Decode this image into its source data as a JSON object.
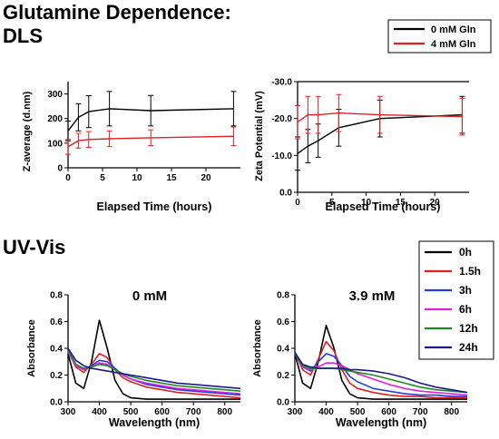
{
  "headings": {
    "dls_line1": "Glutamine Dependence:",
    "dls_line2": "DLS",
    "uv": "UV-Vis"
  },
  "dls_legend": [
    "0 mM Gln",
    "4 mM Gln"
  ],
  "uv_legend": [
    "0h",
    "1.5h",
    "3h",
    "6h",
    "12h",
    "24h"
  ],
  "chart_data": [
    {
      "type": "line",
      "xlabel": "Elapsed Time (hours)",
      "ylabel": "Z-average (d.nm)",
      "xlim": [
        0,
        25
      ],
      "ylim": [
        0,
        350
      ],
      "xticks": [
        0,
        5,
        10,
        15,
        20
      ],
      "yticks": [
        0,
        100,
        200,
        300
      ],
      "x": [
        0,
        1.5,
        3,
        6,
        12,
        24
      ],
      "series": [
        {
          "name": "0 mM Gln",
          "color": "#000000",
          "values": [
            150,
            205,
            228,
            240,
            232,
            240
          ],
          "errors": [
            40,
            55,
            65,
            70,
            62,
            70
          ]
        },
        {
          "name": "4 mM Gln",
          "color": "#e02020",
          "values": [
            85,
            110,
            115,
            118,
            122,
            128
          ],
          "errors": [
            30,
            30,
            32,
            32,
            32,
            38
          ]
        }
      ]
    },
    {
      "type": "line",
      "xlabel": "Elapsed Time (hours)",
      "ylabel": "Zeta Potential (mV)",
      "xlim": [
        0,
        25
      ],
      "ylim": [
        -30,
        0
      ],
      "xticks": [
        0,
        5,
        10,
        15,
        20
      ],
      "yticks": [
        0,
        -10,
        -20,
        -30
      ],
      "x": [
        0,
        1.5,
        3,
        6,
        12,
        24
      ],
      "series": [
        {
          "name": "0 mM Gln",
          "color": "#000000",
          "values": [
            -10.5,
            -12.5,
            -14,
            -17.5,
            -20,
            -21
          ],
          "errors": [
            4.5,
            4.5,
            4.5,
            5,
            5,
            5
          ]
        },
        {
          "name": "4 mM Gln",
          "color": "#e02020",
          "values": [
            -19,
            -21,
            -21,
            -21.5,
            -21,
            -20.5
          ],
          "errors": [
            4.5,
            5,
            5,
            5,
            5,
            5
          ]
        }
      ]
    },
    {
      "type": "line",
      "title": "0 mM",
      "xlabel": "Wavelength (nm)",
      "ylabel": "Absorbance",
      "xlim": [
        300,
        850
      ],
      "ylim": [
        0,
        0.8
      ],
      "xticks": [
        300,
        400,
        500,
        600,
        700,
        800
      ],
      "yticks": [
        0.0,
        0.2,
        0.4,
        0.6,
        0.8
      ],
      "x": [
        300,
        325,
        350,
        375,
        400,
        425,
        450,
        475,
        500,
        550,
        600,
        650,
        700,
        750,
        800,
        850
      ],
      "series": [
        {
          "name": "0h",
          "color": "#000000",
          "values": [
            0.36,
            0.14,
            0.1,
            0.3,
            0.61,
            0.4,
            0.16,
            0.06,
            0.03,
            0.02,
            0.02,
            0.02,
            0.02,
            0.02,
            0.02,
            0.02
          ]
        },
        {
          "name": "1.5h",
          "color": "#e02020",
          "values": [
            0.38,
            0.26,
            0.22,
            0.28,
            0.36,
            0.33,
            0.24,
            0.18,
            0.15,
            0.11,
            0.09,
            0.07,
            0.06,
            0.05,
            0.04,
            0.03
          ]
        },
        {
          "name": "3h",
          "color": "#1f3fe0",
          "values": [
            0.39,
            0.28,
            0.24,
            0.27,
            0.31,
            0.3,
            0.25,
            0.2,
            0.17,
            0.13,
            0.11,
            0.09,
            0.08,
            0.07,
            0.06,
            0.05
          ]
        },
        {
          "name": "6h",
          "color": "#e020e0",
          "values": [
            0.37,
            0.27,
            0.24,
            0.26,
            0.29,
            0.28,
            0.24,
            0.2,
            0.17,
            0.14,
            0.12,
            0.1,
            0.09,
            0.08,
            0.07,
            0.06
          ]
        },
        {
          "name": "12h",
          "color": "#1e8a1e",
          "values": [
            0.38,
            0.28,
            0.25,
            0.26,
            0.28,
            0.27,
            0.24,
            0.21,
            0.19,
            0.16,
            0.14,
            0.12,
            0.11,
            0.1,
            0.09,
            0.08
          ]
        },
        {
          "name": "24h",
          "color": "#1a1a8c",
          "values": [
            0.4,
            0.31,
            0.27,
            0.25,
            0.24,
            0.23,
            0.22,
            0.21,
            0.2,
            0.18,
            0.16,
            0.14,
            0.13,
            0.12,
            0.11,
            0.1
          ]
        }
      ]
    },
    {
      "type": "line",
      "title": "3.9 mM",
      "xlabel": "Wavelength (nm)",
      "ylabel": "Absorbance",
      "xlim": [
        300,
        850
      ],
      "ylim": [
        0,
        0.8
      ],
      "xticks": [
        300,
        400,
        500,
        600,
        700,
        800
      ],
      "yticks": [
        0.0,
        0.2,
        0.4,
        0.6,
        0.8
      ],
      "x": [
        300,
        325,
        350,
        375,
        400,
        425,
        450,
        475,
        500,
        550,
        600,
        650,
        700,
        750,
        800,
        850
      ],
      "series": [
        {
          "name": "0h",
          "color": "#000000",
          "values": [
            0.36,
            0.14,
            0.1,
            0.3,
            0.57,
            0.4,
            0.16,
            0.06,
            0.03,
            0.02,
            0.02,
            0.02,
            0.02,
            0.02,
            0.02,
            0.02
          ]
        },
        {
          "name": "1.5h",
          "color": "#e02020",
          "values": [
            0.37,
            0.24,
            0.2,
            0.32,
            0.45,
            0.38,
            0.24,
            0.14,
            0.1,
            0.07,
            0.05,
            0.04,
            0.04,
            0.03,
            0.03,
            0.03
          ]
        },
        {
          "name": "3h",
          "color": "#1f3fe0",
          "values": [
            0.37,
            0.26,
            0.23,
            0.3,
            0.36,
            0.34,
            0.27,
            0.19,
            0.15,
            0.1,
            0.08,
            0.06,
            0.05,
            0.05,
            0.04,
            0.04
          ]
        },
        {
          "name": "6h",
          "color": "#e020e0",
          "values": [
            0.36,
            0.26,
            0.24,
            0.26,
            0.29,
            0.29,
            0.27,
            0.24,
            0.21,
            0.17,
            0.13,
            0.1,
            0.08,
            0.07,
            0.06,
            0.05
          ]
        },
        {
          "name": "12h",
          "color": "#1e8a1e",
          "values": [
            0.36,
            0.27,
            0.25,
            0.25,
            0.25,
            0.25,
            0.24,
            0.23,
            0.22,
            0.2,
            0.17,
            0.14,
            0.11,
            0.09,
            0.08,
            0.07
          ]
        },
        {
          "name": "24h",
          "color": "#1a1a8c",
          "values": [
            0.37,
            0.28,
            0.26,
            0.25,
            0.25,
            0.25,
            0.25,
            0.24,
            0.24,
            0.23,
            0.21,
            0.18,
            0.14,
            0.11,
            0.09,
            0.07
          ]
        }
      ]
    }
  ]
}
